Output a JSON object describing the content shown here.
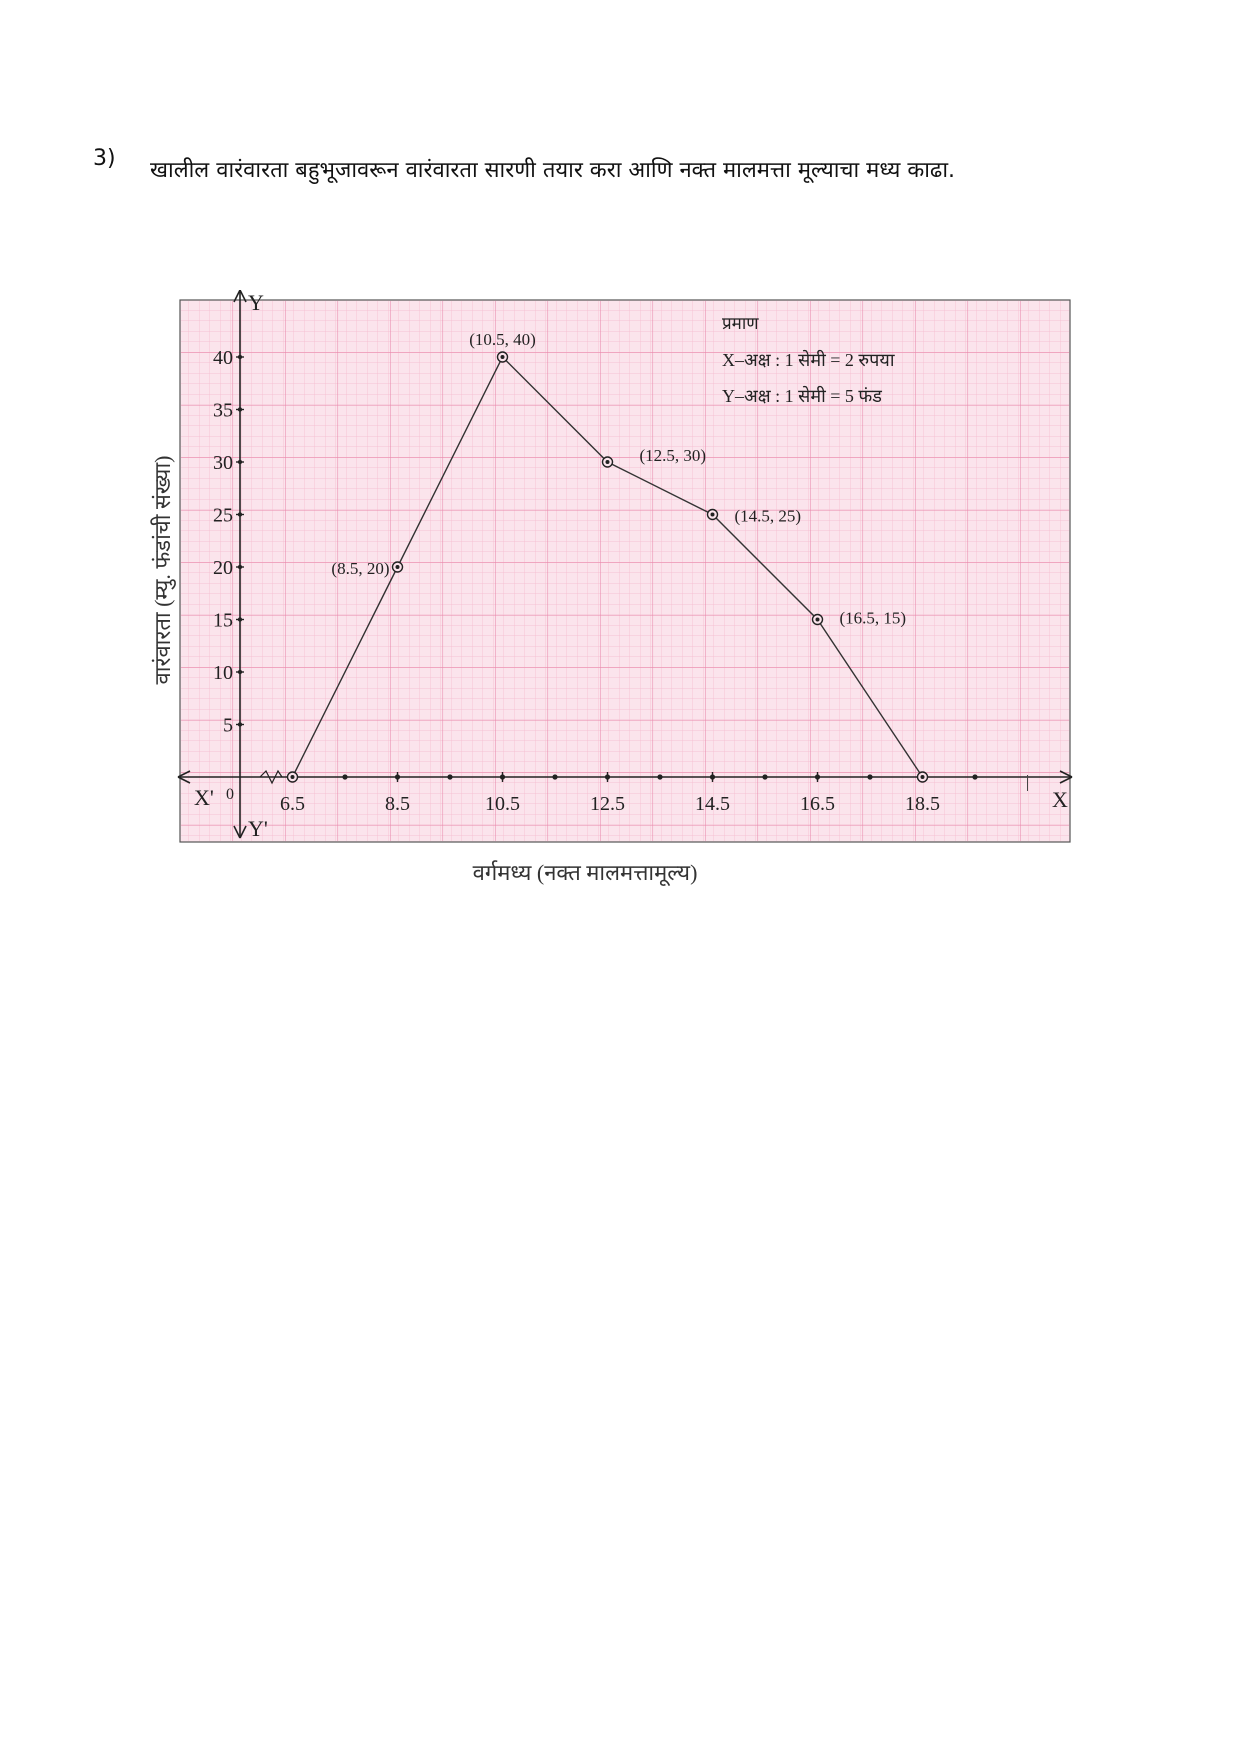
{
  "question": {
    "number": "3)",
    "text": "खालील वारंवारता बहुभूजावरून वारंवारता सारणी तयार करा आणि नक्त मालमत्ता मूल्याचा मध्य काढा."
  },
  "chart_data": {
    "type": "line",
    "xlabel": "वर्गमध्य  (नक्त मालमत्तामूल्य)",
    "ylabel": "वारंवारता  (म्यु. फंडांची संख्या)",
    "x_ticks": [
      "6.5",
      "8.5",
      "10.5",
      "12.5",
      "14.5",
      "16.5",
      "18.5"
    ],
    "y_ticks": [
      "5",
      "10",
      "15",
      "20",
      "25",
      "30",
      "35",
      "40"
    ],
    "xlim": [
      5.5,
      20.5
    ],
    "ylim": [
      -5,
      45
    ],
    "grid": true,
    "grid_color": "#f2a6c0",
    "paper_color": "#fbe4ec",
    "line_color": "#333333",
    "points": [
      {
        "x": 6.5,
        "y": 0,
        "label": ""
      },
      {
        "x": 8.5,
        "y": 20,
        "label": "(8.5, 20)"
      },
      {
        "x": 10.5,
        "y": 40,
        "label": "(10.5, 40)"
      },
      {
        "x": 12.5,
        "y": 30,
        "label": "(12.5, 30)"
      },
      {
        "x": 14.5,
        "y": 25,
        "label": "(14.5, 25)"
      },
      {
        "x": 16.5,
        "y": 15,
        "label": "(16.5, 15)"
      },
      {
        "x": 18.5,
        "y": 0,
        "label": ""
      }
    ],
    "axis_labels": {
      "x_pos": "X",
      "x_neg": "X'",
      "y_pos": "Y",
      "y_neg": "Y'",
      "origin": "0"
    },
    "scale": {
      "title": "प्रमाण",
      "x_line": "X–अक्ष : 1 सेमी = 2  रुपया",
      "y_line": "Y–अक्ष : 1 सेमी = 5  फंड"
    }
  }
}
